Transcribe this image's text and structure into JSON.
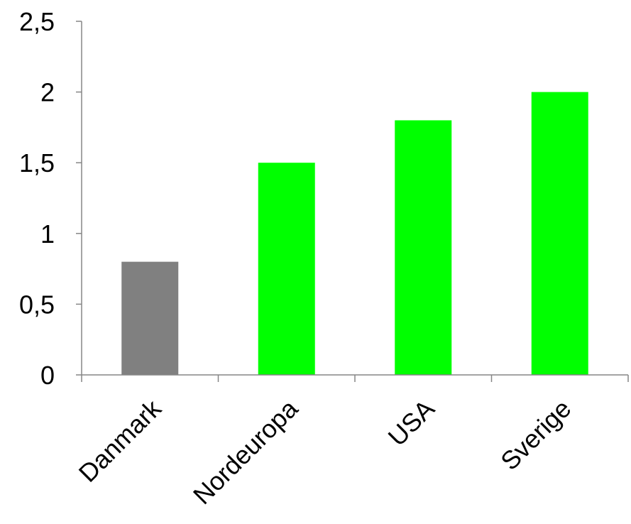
{
  "chart_data": {
    "type": "bar",
    "categories": [
      "Danmark",
      "Nordeuropa",
      "USA",
      "Sverige"
    ],
    "values": [
      0.8,
      1.5,
      1.8,
      2
    ],
    "bar_colors": [
      "#808080",
      "#00ff00",
      "#00ff00",
      "#00ff00"
    ],
    "ylim": [
      0,
      2.5
    ],
    "yticks": [
      0,
      0.5,
      1,
      1.5,
      2,
      2.5
    ],
    "ytick_labels": [
      "0",
      "0,5",
      "1",
      "1,5",
      "2",
      "2,5"
    ],
    "grid": false,
    "legend": "none",
    "title": "",
    "xlabel": "",
    "ylabel": ""
  }
}
